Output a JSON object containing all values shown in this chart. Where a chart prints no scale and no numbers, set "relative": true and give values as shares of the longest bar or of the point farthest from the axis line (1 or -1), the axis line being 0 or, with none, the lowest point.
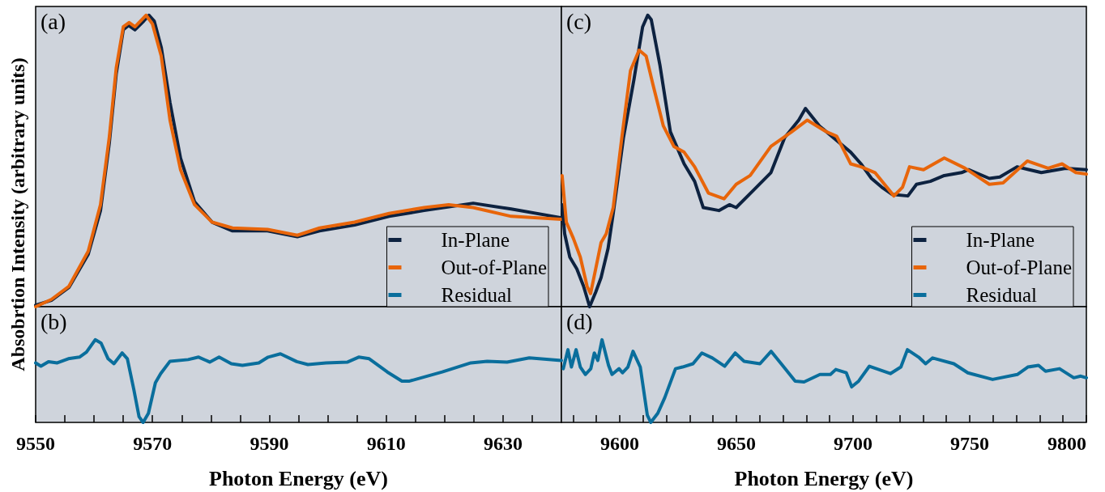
{
  "chart_data": [
    {
      "type": "line",
      "title": "(a)",
      "ylabel": "Absobrtion Intensity (arbitrary units)",
      "relative": true,
      "xlim": [
        9550,
        9640
      ],
      "tick_labels": false,
      "grid": false,
      "legend": "bottom right",
      "series": [
        {
          "name": "In-Plane",
          "color": "#0d2240",
          "x": [
            9550,
            9552.7,
            9555.7,
            9559,
            9561.1,
            9562.6,
            9563.8,
            9565,
            9565.9,
            9567,
            9568.5,
            9569.4,
            9570.3,
            9571.5,
            9573,
            9574.8,
            9577.2,
            9580.2,
            9583.7,
            9589.7,
            9594.8,
            9598.6,
            9604.6,
            9610.5,
            9616.5,
            9624.9,
            9631.4,
            9640
          ],
          "values": [
            0.005,
            0.022,
            0.066,
            0.18,
            0.33,
            0.56,
            0.8,
            0.95,
            0.965,
            0.95,
            0.98,
            1,
            0.98,
            0.89,
            0.7,
            0.51,
            0.36,
            0.29,
            0.26,
            0.26,
            0.24,
            0.26,
            0.28,
            0.31,
            0.33,
            0.355,
            0.335,
            0.305
          ]
        },
        {
          "name": "Out-of-Plane",
          "color": "#e8650a",
          "x": [
            9550,
            9552.7,
            9555.7,
            9559,
            9561.1,
            9562.6,
            9563.8,
            9565,
            9566,
            9567,
            9568.9,
            9570,
            9571.5,
            9573,
            9574.8,
            9577.2,
            9580.2,
            9583.7,
            9589.7,
            9594.8,
            9598.6,
            9604.6,
            9610.5,
            9616.5,
            9620.7,
            9624.9,
            9631.4,
            9640
          ],
          "values": [
            0,
            0.025,
            0.07,
            0.19,
            0.35,
            0.58,
            0.82,
            0.96,
            0.975,
            0.96,
            1,
            0.97,
            0.86,
            0.64,
            0.47,
            0.35,
            0.29,
            0.27,
            0.265,
            0.245,
            0.27,
            0.29,
            0.32,
            0.34,
            0.35,
            0.34,
            0.31,
            0.3
          ]
        }
      ]
    },
    {
      "type": "line",
      "title": "(b)",
      "xlabel": "Photon Energy (eV)",
      "relative": true,
      "xlim": [
        9550,
        9640
      ],
      "tick_labels": "x",
      "grid": false,
      "xticks": [
        9550,
        {
          "value": 9555,
          "label": null
        },
        {
          "value": 9560,
          "label": null
        },
        {
          "value": 9565,
          "label": null
        },
        9570,
        {
          "value": 9575,
          "label": null
        },
        {
          "value": 9580,
          "label": null
        },
        {
          "value": 9585,
          "label": null
        },
        9590,
        {
          "value": 9595,
          "label": null
        },
        {
          "value": 9600,
          "label": null
        },
        {
          "value": 9605,
          "label": null
        },
        9610,
        {
          "value": 9615,
          "label": null
        },
        {
          "value": 9620,
          "label": null
        },
        {
          "value": 9625,
          "label": null
        },
        9630,
        {
          "value": 9635,
          "label": null
        }
      ],
      "series": [
        {
          "name": "Residual",
          "color": "#0a6e9c",
          "x": [
            9550,
            9550.9,
            9552.2,
            9553.7,
            9555.6,
            9557.5,
            9558.7,
            9560.2,
            9561.2,
            9562.4,
            9563.4,
            9564.8,
            9565.7,
            9566.8,
            9567.7,
            9568.4,
            9569.3,
            9570.5,
            9571.4,
            9573,
            9576.1,
            9577.9,
            9579.8,
            9581.4,
            9583.5,
            9585.4,
            9588.2,
            9589.8,
            9591.9,
            9594.7,
            9596.6,
            9599.7,
            9603.4,
            9605.3,
            9607.1,
            9610.2,
            9612.7,
            9614,
            9619.6,
            9624.5,
            9627.3,
            9630.7,
            9634.5,
            9640
          ],
          "values": [
            0.72,
            0.68,
            0.735,
            0.72,
            0.77,
            0.79,
            0.85,
            1,
            0.96,
            0.77,
            0.71,
            0.84,
            0.77,
            0.4,
            0.07,
            0,
            0.11,
            0.48,
            0.59,
            0.74,
            0.76,
            0.79,
            0.73,
            0.79,
            0.71,
            0.69,
            0.72,
            0.79,
            0.83,
            0.735,
            0.7,
            0.72,
            0.73,
            0.79,
            0.77,
            0.61,
            0.5,
            0.5,
            0.61,
            0.72,
            0.74,
            0.73,
            0.78,
            0.75
          ]
        }
      ]
    },
    {
      "type": "line",
      "title": "(c)",
      "relative": true,
      "xlim": [
        9575,
        9800
      ],
      "tick_labels": false,
      "grid": false,
      "legend": "bottom right",
      "series": [
        {
          "name": "In-Plane",
          "color": "#0d2240",
          "x": [
            9575.3,
            9576.4,
            9578.6,
            9581.6,
            9584.5,
            9587.1,
            9589.7,
            9592,
            9595,
            9597.2,
            9601.6,
            9606.1,
            9609.8,
            9612,
            9613.5,
            9617.2,
            9621.7,
            9627.6,
            9632.1,
            9635.8,
            9642.5,
            9647,
            9649.9,
            9657.4,
            9664.8,
            9670.7,
            9676.7,
            9679.6,
            9685.6,
            9691.5,
            9699,
            9703.4,
            9707.9,
            9712.3,
            9716.8,
            9723.5,
            9727.2,
            9733.1,
            9739.1,
            9746.5,
            9749.5,
            9758.4,
            9762.9,
            9770.3,
            9780.7,
            9791.1,
            9800
          ],
          "values": [
            0.35,
            0.25,
            0.17,
            0.13,
            0.07,
            0,
            0.05,
            0.1,
            0.2,
            0.32,
            0.58,
            0.78,
            0.96,
            1,
            0.985,
            0.83,
            0.6,
            0.49,
            0.43,
            0.34,
            0.33,
            0.35,
            0.34,
            0.4,
            0.46,
            0.58,
            0.64,
            0.68,
            0.62,
            0.58,
            0.53,
            0.49,
            0.44,
            0.41,
            0.385,
            0.38,
            0.42,
            0.43,
            0.45,
            0.46,
            0.47,
            0.44,
            0.445,
            0.48,
            0.46,
            0.475,
            0.47
          ]
        },
        {
          "name": "Out-of-Plane",
          "color": "#e8650a",
          "x": [
            9575.3,
            9577.1,
            9580.1,
            9583.1,
            9586,
            9587.5,
            9589.7,
            9592,
            9594.2,
            9597.2,
            9600.9,
            9604.6,
            9608.3,
            9611.3,
            9614.3,
            9618.7,
            9623.2,
            9627.6,
            9632.1,
            9638,
            9644.7,
            9649.9,
            9655.9,
            9664.8,
            9673.7,
            9680.4,
            9688.6,
            9693,
            9699,
            9703.4,
            9709.4,
            9717.5,
            9721.2,
            9724.2,
            9730.2,
            9739.1,
            9748,
            9758.4,
            9764.3,
            9774.7,
            9783.6,
            9789.6,
            9795.5,
            9800
          ],
          "values": [
            0.45,
            0.29,
            0.235,
            0.17,
            0.07,
            0.045,
            0.13,
            0.22,
            0.25,
            0.34,
            0.58,
            0.81,
            0.88,
            0.86,
            0.76,
            0.62,
            0.55,
            0.53,
            0.48,
            0.39,
            0.37,
            0.42,
            0.45,
            0.55,
            0.6,
            0.64,
            0.6,
            0.585,
            0.49,
            0.48,
            0.46,
            0.38,
            0.41,
            0.48,
            0.47,
            0.51,
            0.475,
            0.42,
            0.425,
            0.5,
            0.475,
            0.49,
            0.46,
            0.455
          ]
        }
      ]
    },
    {
      "type": "line",
      "title": "(d)",
      "xlabel": "Photon Energy (eV)",
      "relative": true,
      "xlim": [
        9575,
        9800
      ],
      "tick_labels": "x",
      "grid": false,
      "xticks": [
        {
          "value": 9580,
          "label": null
        },
        {
          "value": 9590,
          "label": null
        },
        9600,
        {
          "value": 9610,
          "label": null
        },
        {
          "value": 9620,
          "label": null
        },
        {
          "value": 9630,
          "label": null
        },
        {
          "value": 9640,
          "label": null
        },
        9650,
        {
          "value": 9660,
          "label": null
        },
        {
          "value": 9670,
          "label": null
        },
        {
          "value": 9680,
          "label": null
        },
        {
          "value": 9690,
          "label": null
        },
        9700,
        {
          "value": 9710,
          "label": null
        },
        {
          "value": 9720,
          "label": null
        },
        {
          "value": 9730,
          "label": null
        },
        {
          "value": 9740,
          "label": null
        },
        9750,
        {
          "value": 9760,
          "label": null
        },
        {
          "value": 9770,
          "label": null
        },
        {
          "value": 9780,
          "label": null
        },
        {
          "value": 9790,
          "label": null
        },
        9800
      ],
      "series": [
        {
          "name": "Residual",
          "color": "#0a6e9c",
          "x": [
            9575.8,
            9577.8,
            9579.3,
            9581.3,
            9583.1,
            9585.3,
            9587.6,
            9589.1,
            9590.6,
            9592.4,
            9595.2,
            9596.7,
            9599.7,
            9601.2,
            9603.5,
            9605.7,
            9608.8,
            9611.8,
            9613.3,
            9616.3,
            9619.3,
            9623.9,
            9626.9,
            9631.4,
            9635.2,
            9639.7,
            9645,
            9649.5,
            9653.3,
            9660.1,
            9664.9,
            9669.2,
            9675.2,
            9679,
            9685.8,
            9690.3,
            9692.6,
            9697.1,
            9699.4,
            9702.4,
            9707,
            9716,
            9720.5,
            9723.3,
            9728.1,
            9731.1,
            9734.1,
            9743.2,
            9749.2,
            9759.8,
            9770.4,
            9774.9,
            9779.5,
            9782.5,
            9788.5,
            9794.6,
            9797.6,
            9800
          ],
          "values": [
            0.65,
            0.88,
            0.67,
            0.88,
            0.67,
            0.58,
            0.65,
            0.84,
            0.75,
            1,
            0.69,
            0.58,
            0.65,
            0.6,
            0.67,
            0.86,
            0.67,
            0.09,
            0,
            0.11,
            0.3,
            0.65,
            0.67,
            0.71,
            0.84,
            0.78,
            0.68,
            0.84,
            0.74,
            0.71,
            0.86,
            0.71,
            0.5,
            0.49,
            0.58,
            0.58,
            0.64,
            0.6,
            0.43,
            0.5,
            0.68,
            0.59,
            0.67,
            0.88,
            0.79,
            0.71,
            0.78,
            0.71,
            0.6,
            0.52,
            0.58,
            0.67,
            0.69,
            0.62,
            0.65,
            0.54,
            0.56,
            0.54
          ]
        }
      ]
    }
  ]
}
